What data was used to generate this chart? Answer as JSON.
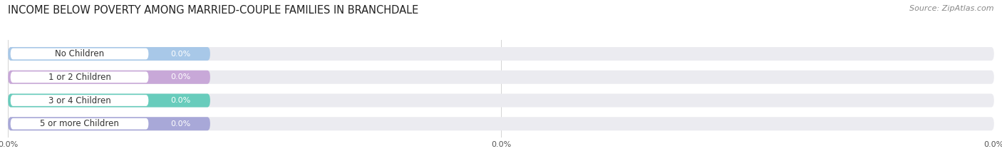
{
  "title": "INCOME BELOW POVERTY AMONG MARRIED-COUPLE FAMILIES IN BRANCHDALE",
  "source": "Source: ZipAtlas.com",
  "categories": [
    "No Children",
    "1 or 2 Children",
    "3 or 4 Children",
    "5 or more Children"
  ],
  "values": [
    0.0,
    0.0,
    0.0,
    0.0
  ],
  "bar_colors": [
    "#a8c8e8",
    "#c8a8d8",
    "#68ccbc",
    "#a8a8d8"
  ],
  "background_color": "#ffffff",
  "bar_bg_color": "#ebebf0",
  "title_fontsize": 10.5,
  "source_fontsize": 8,
  "label_fontsize": 8.5,
  "value_fontsize": 8,
  "xtick_positions": [
    0,
    50,
    100
  ],
  "xtick_labels": [
    "0.0%",
    "0.0%",
    "0.0%"
  ]
}
